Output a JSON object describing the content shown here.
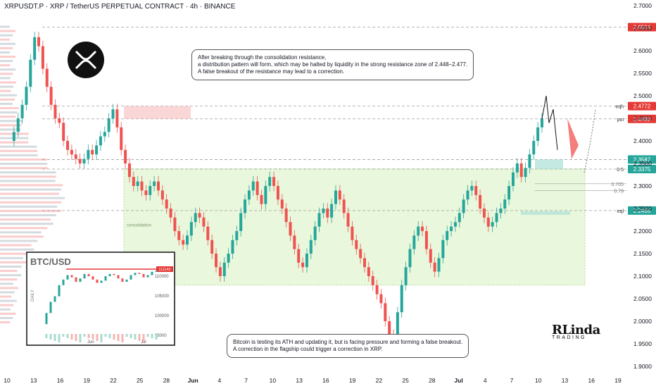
{
  "header": {
    "title": "XRPUSDT.P · XRP / TetherUS PERPETUAL CONTRACT · 4h · BINANCE"
  },
  "colors": {
    "up": "#26a69a",
    "down": "#ef5350",
    "red_line": "#e53935",
    "zone": "#e9f7dc"
  },
  "chart_data": {
    "type": "candlestick",
    "instrument": "XRPUSDT.P",
    "exchange": "BINANCE",
    "timeframe": "4h",
    "y_ticks": [
      "2.7000",
      "2.6500",
      "2.6000",
      "2.5500",
      "2.5000",
      "2.4500",
      "2.4000",
      "2.3500",
      "2.3000",
      "2.2500",
      "2.2000",
      "2.1500",
      "2.1000",
      "2.0500",
      "2.0000",
      "1.9500",
      "1.9000"
    ],
    "ylim": [
      1.9,
      2.7
    ],
    "x_ticks": [
      "10",
      "13",
      "16",
      "19",
      "22",
      "25",
      "28",
      "Jun",
      "4",
      "7",
      "10",
      "13",
      "16",
      "19",
      "22",
      "25",
      "28",
      "Jul",
      "4",
      "7",
      "10",
      "13",
      "16",
      "19"
    ],
    "price_labels": [
      {
        "value": "2.6524",
        "label": "",
        "color": "#e53935"
      },
      {
        "value": "2.4772",
        "label": "eqh",
        "color": "#e53935"
      },
      {
        "value": "2.4488",
        "label": "poi",
        "color": "#e53935"
      },
      {
        "value": "2.3587",
        "label": "",
        "color": "#26a69a"
      },
      {
        "value": "2.3375",
        "label": "0.5",
        "color": "#26a69a"
      },
      {
        "value": "2.2455",
        "label": "eql",
        "color": "#26a69a"
      }
    ],
    "fib_levels": [
      {
        "label": "0.705",
        "value": 2.305
      },
      {
        "label": "0.79",
        "value": 2.29
      }
    ],
    "range_zone": {
      "label": "consolidation",
      "top": 2.338,
      "bottom": 2.08
    },
    "close_path": [
      2.4,
      2.42,
      2.45,
      2.48,
      2.52,
      2.58,
      2.63,
      2.61,
      2.56,
      2.52,
      2.48,
      2.45,
      2.44,
      2.4,
      2.38,
      2.37,
      2.36,
      2.35,
      2.36,
      2.38,
      2.37,
      2.39,
      2.41,
      2.42,
      2.45,
      2.47,
      2.43,
      2.38,
      2.35,
      2.32,
      2.3,
      2.31,
      2.29,
      2.28,
      2.3,
      2.31,
      2.29,
      2.27,
      2.25,
      2.23,
      2.2,
      2.18,
      2.17,
      2.19,
      2.22,
      2.24,
      2.23,
      2.21,
      2.18,
      2.15,
      2.12,
      2.1,
      2.13,
      2.15,
      2.18,
      2.2,
      2.24,
      2.27,
      2.29,
      2.31,
      2.28,
      2.26,
      2.3,
      2.32,
      2.3,
      2.27,
      2.25,
      2.22,
      2.19,
      2.16,
      2.13,
      2.12,
      2.15,
      2.18,
      2.21,
      2.24,
      2.25,
      2.23,
      2.26,
      2.29,
      2.27,
      2.24,
      2.21,
      2.18,
      2.16,
      2.14,
      2.12,
      2.1,
      2.08,
      2.06,
      2.04,
      2.0,
      1.97,
      1.96,
      2.02,
      2.08,
      2.12,
      2.16,
      2.19,
      2.21,
      2.2,
      2.16,
      2.13,
      2.11,
      2.14,
      2.18,
      2.2,
      2.21,
      2.22,
      2.24,
      2.27,
      2.29,
      2.3,
      2.28,
      2.25,
      2.23,
      2.21,
      2.22,
      2.24,
      2.25,
      2.27,
      2.3,
      2.33,
      2.35,
      2.32,
      2.34,
      2.37,
      2.4,
      2.43,
      2.45
    ],
    "projection_path": [
      2.4488,
      2.5,
      2.44,
      2.47,
      2.38
    ],
    "annotations": [
      {
        "label": "BTC/USD",
        "value": 111140
      }
    ]
  },
  "inset": {
    "title": "BTC/USD",
    "side_label": "DAILY",
    "ticks": [
      "110000",
      "105000",
      "100000",
      "95000"
    ],
    "x_ticks": [
      "Jun",
      "Jul"
    ],
    "last_price": "111140"
  },
  "callouts": {
    "top": [
      "After breaking through the consolidation resistance,",
      "a distribution pattern will form, which may be halted by liquidity in the strong resistance zone of 2.448–2.477.",
      "A false breakout of the resistance may lead to a correction."
    ],
    "bottom": [
      "Bitcoin is testing its ATH and updating it, but is facing pressure and forming a false breakout.",
      "A correction in the flagship could trigger a correction in XRP."
    ]
  },
  "brand": {
    "name": "RLinda",
    "tagline": "TRADING"
  }
}
